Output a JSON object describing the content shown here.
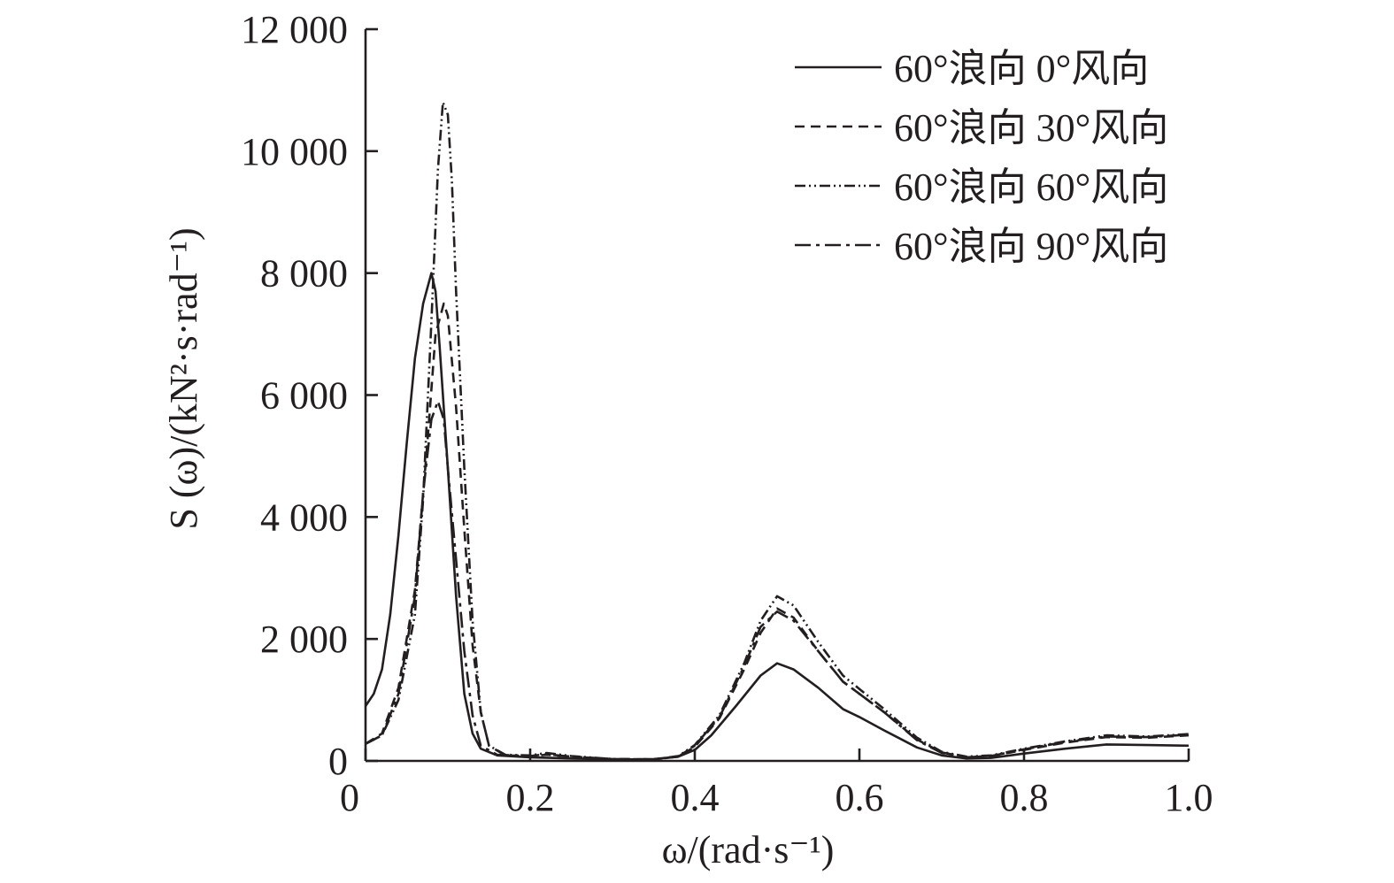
{
  "chart_data": {
    "type": "line",
    "title": "",
    "xlabel": "ω/(rad·s⁻¹)",
    "ylabel": "S (ω)/(kN²·s·rad⁻¹)",
    "xlim": [
      0,
      1.0
    ],
    "ylim": [
      0,
      12000
    ],
    "x_ticks": [
      0,
      0.2,
      0.4,
      0.6,
      0.8,
      1.0
    ],
    "x_tick_labels": [
      "0",
      "0.2",
      "0.4",
      "0.6",
      "0.8",
      "1.0"
    ],
    "y_ticks": [
      0,
      2000,
      4000,
      6000,
      8000,
      10000,
      12000
    ],
    "y_tick_labels": [
      "0",
      "2 000",
      "4 000",
      "6 000",
      "8 000",
      "10 000",
      "12 000"
    ],
    "grid": false,
    "legend_position": "top-right",
    "series": [
      {
        "name": "60°浪向 0°风向",
        "line_style": "solid",
        "points": [
          [
            0.0,
            900
          ],
          [
            0.01,
            1100
          ],
          [
            0.02,
            1500
          ],
          [
            0.03,
            2400
          ],
          [
            0.04,
            3700
          ],
          [
            0.05,
            5200
          ],
          [
            0.06,
            6600
          ],
          [
            0.07,
            7500
          ],
          [
            0.08,
            8000
          ],
          [
            0.085,
            7700
          ],
          [
            0.09,
            6800
          ],
          [
            0.1,
            4800
          ],
          [
            0.11,
            2700
          ],
          [
            0.12,
            1100
          ],
          [
            0.13,
            450
          ],
          [
            0.14,
            200
          ],
          [
            0.16,
            90
          ],
          [
            0.2,
            60
          ],
          [
            0.25,
            40
          ],
          [
            0.3,
            20
          ],
          [
            0.35,
            30
          ],
          [
            0.38,
            70
          ],
          [
            0.4,
            180
          ],
          [
            0.42,
            420
          ],
          [
            0.45,
            900
          ],
          [
            0.48,
            1400
          ],
          [
            0.5,
            1600
          ],
          [
            0.52,
            1500
          ],
          [
            0.55,
            1200
          ],
          [
            0.58,
            850
          ],
          [
            0.6,
            720
          ],
          [
            0.63,
            500
          ],
          [
            0.67,
            220
          ],
          [
            0.7,
            90
          ],
          [
            0.73,
            40
          ],
          [
            0.76,
            50
          ],
          [
            0.8,
            120
          ],
          [
            0.85,
            200
          ],
          [
            0.9,
            270
          ],
          [
            0.95,
            260
          ],
          [
            1.0,
            250
          ]
        ]
      },
      {
        "name": "60°浪向 30°风向",
        "line_style": "dashed",
        "points": [
          [
            0.0,
            280
          ],
          [
            0.02,
            450
          ],
          [
            0.04,
            1200
          ],
          [
            0.06,
            2800
          ],
          [
            0.075,
            5200
          ],
          [
            0.085,
            7000
          ],
          [
            0.095,
            7500
          ],
          [
            0.1,
            7300
          ],
          [
            0.11,
            5800
          ],
          [
            0.12,
            3800
          ],
          [
            0.13,
            1900
          ],
          [
            0.14,
            800
          ],
          [
            0.15,
            250
          ],
          [
            0.17,
            90
          ],
          [
            0.2,
            80
          ],
          [
            0.22,
            100
          ],
          [
            0.25,
            70
          ],
          [
            0.3,
            30
          ],
          [
            0.35,
            25
          ],
          [
            0.38,
            70
          ],
          [
            0.4,
            230
          ],
          [
            0.43,
            700
          ],
          [
            0.46,
            1500
          ],
          [
            0.48,
            2100
          ],
          [
            0.5,
            2500
          ],
          [
            0.52,
            2350
          ],
          [
            0.55,
            1800
          ],
          [
            0.58,
            1300
          ],
          [
            0.6,
            1100
          ],
          [
            0.63,
            800
          ],
          [
            0.67,
            350
          ],
          [
            0.7,
            140
          ],
          [
            0.73,
            60
          ],
          [
            0.76,
            80
          ],
          [
            0.8,
            180
          ],
          [
            0.85,
            300
          ],
          [
            0.9,
            390
          ],
          [
            0.95,
            380
          ],
          [
            1.0,
            420
          ]
        ]
      },
      {
        "name": "60°浪向 60°风向",
        "line_style": "dash-dot-dot",
        "points": [
          [
            0.0,
            280
          ],
          [
            0.02,
            420
          ],
          [
            0.04,
            1000
          ],
          [
            0.06,
            2400
          ],
          [
            0.07,
            4300
          ],
          [
            0.08,
            7200
          ],
          [
            0.088,
            9700
          ],
          [
            0.094,
            10800
          ],
          [
            0.1,
            10600
          ],
          [
            0.105,
            9500
          ],
          [
            0.11,
            7700
          ],
          [
            0.12,
            4800
          ],
          [
            0.13,
            2300
          ],
          [
            0.14,
            800
          ],
          [
            0.15,
            250
          ],
          [
            0.17,
            100
          ],
          [
            0.2,
            90
          ],
          [
            0.22,
            130
          ],
          [
            0.25,
            80
          ],
          [
            0.3,
            30
          ],
          [
            0.35,
            25
          ],
          [
            0.38,
            80
          ],
          [
            0.4,
            260
          ],
          [
            0.43,
            750
          ],
          [
            0.46,
            1600
          ],
          [
            0.48,
            2300
          ],
          [
            0.5,
            2700
          ],
          [
            0.52,
            2550
          ],
          [
            0.55,
            1950
          ],
          [
            0.58,
            1400
          ],
          [
            0.6,
            1180
          ],
          [
            0.63,
            850
          ],
          [
            0.67,
            380
          ],
          [
            0.7,
            150
          ],
          [
            0.73,
            70
          ],
          [
            0.76,
            90
          ],
          [
            0.8,
            200
          ],
          [
            0.85,
            320
          ],
          [
            0.9,
            420
          ],
          [
            0.95,
            400
          ],
          [
            1.0,
            440
          ]
        ]
      },
      {
        "name": "60°浪向 90°风向",
        "line_style": "dash-dot",
        "points": [
          [
            0.0,
            280
          ],
          [
            0.02,
            420
          ],
          [
            0.04,
            1100
          ],
          [
            0.06,
            2700
          ],
          [
            0.07,
            4400
          ],
          [
            0.08,
            5600
          ],
          [
            0.088,
            5900
          ],
          [
            0.095,
            5600
          ],
          [
            0.1,
            4800
          ],
          [
            0.11,
            3300
          ],
          [
            0.12,
            1800
          ],
          [
            0.13,
            750
          ],
          [
            0.14,
            250
          ],
          [
            0.16,
            100
          ],
          [
            0.2,
            80
          ],
          [
            0.22,
            110
          ],
          [
            0.25,
            70
          ],
          [
            0.3,
            30
          ],
          [
            0.35,
            25
          ],
          [
            0.38,
            70
          ],
          [
            0.4,
            250
          ],
          [
            0.43,
            720
          ],
          [
            0.46,
            1550
          ],
          [
            0.48,
            2200
          ],
          [
            0.5,
            2450
          ],
          [
            0.52,
            2300
          ],
          [
            0.55,
            1800
          ],
          [
            0.58,
            1300
          ],
          [
            0.6,
            1100
          ],
          [
            0.63,
            800
          ],
          [
            0.67,
            340
          ],
          [
            0.7,
            130
          ],
          [
            0.73,
            60
          ],
          [
            0.76,
            80
          ],
          [
            0.8,
            190
          ],
          [
            0.85,
            310
          ],
          [
            0.9,
            400
          ],
          [
            0.95,
            390
          ],
          [
            1.0,
            430
          ]
        ]
      }
    ]
  }
}
